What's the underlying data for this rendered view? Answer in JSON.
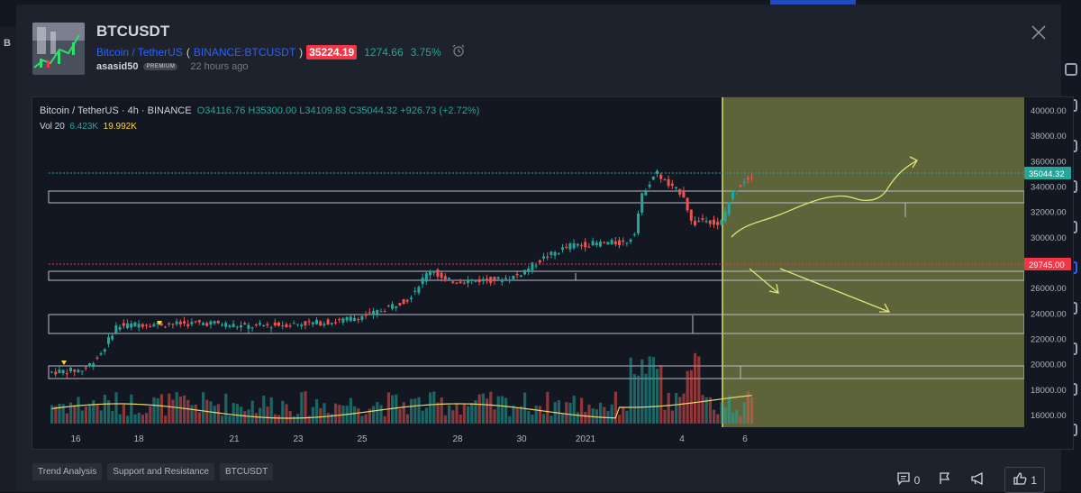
{
  "left_strip_text": "B",
  "idea": {
    "symbol": "BTCUSDT",
    "pair_name": "Bitcoin / TetherUS",
    "exchange_ticker": "BINANCE:BTCUSDT",
    "price": "35224.19",
    "change_abs": "1274.66",
    "change_pct": "3.75%",
    "author": "asasid50",
    "author_badge": "PREMIUM",
    "posted": "22 hours ago"
  },
  "legend": {
    "pair": "Bitcoin / TetherUS",
    "interval": "4h",
    "exchange": "BINANCE",
    "open": "O34116.76",
    "high": "H35300.00",
    "low": "L34109.83",
    "close": "C35044.32",
    "change": "+926.73 (+2.72%)",
    "vol_label": "Vol 20",
    "vol_value": "6.423K",
    "vol_ma": "19.992K"
  },
  "chart_data": {
    "type": "candlestick",
    "ylim": [
      15000,
      41000
    ],
    "y_ticks": [
      "40000.00",
      "38000.00",
      "36000.00",
      "34000.00",
      "32000.00",
      "30000.00",
      "28000.00",
      "26000.00",
      "24000.00",
      "22000.00",
      "20000.00",
      "18000.00",
      "16000.00"
    ],
    "x_ticks": [
      "16",
      "18",
      "21",
      "23",
      "25",
      "28",
      "30",
      "2021",
      "4",
      "6"
    ],
    "last_price_label": "35044.32",
    "alert_price_label": "29745.00",
    "colors": {
      "up": "#26a69a",
      "down": "#ef5350",
      "highlight": "#c5d05a",
      "alert": "#f23645"
    }
  },
  "tags": [
    "Trend Analysis",
    "Support and Resistance",
    "BTCUSDT"
  ],
  "actions": {
    "comments": "0",
    "likes": "1"
  },
  "icons": [
    "close-icon",
    "alarm-clock-icon",
    "comment-icon",
    "flag-icon",
    "megaphone-icon",
    "thumbs-up-icon"
  ]
}
